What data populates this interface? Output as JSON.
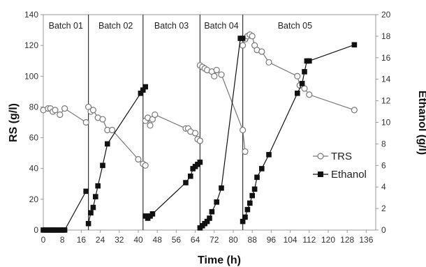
{
  "chart_data": {
    "type": "scatter",
    "title": "",
    "xlabel": "Time (h)",
    "ylabel": "RS (g/l)",
    "y2label": "Ethanol (g/l)",
    "xlim": [
      0,
      140
    ],
    "ylim": [
      0,
      140
    ],
    "y2lim": [
      0,
      20
    ],
    "xticks": [
      0,
      8,
      16,
      24,
      32,
      40,
      48,
      56,
      64,
      72,
      80,
      88,
      96,
      104,
      112,
      120,
      128,
      136
    ],
    "yticks": [
      0,
      20,
      40,
      60,
      80,
      100,
      120,
      140
    ],
    "y2ticks": [
      0,
      2,
      4,
      6,
      8,
      10,
      12,
      14,
      16,
      18,
      20
    ],
    "grid": false,
    "legend_position": "right",
    "batch_boundaries": [
      19,
      42,
      66,
      84
    ],
    "batch_labels": [
      {
        "text": "Batch 01",
        "x": 9.5
      },
      {
        "text": "Batch 02",
        "x": 30.5
      },
      {
        "text": "Batch 03",
        "x": 54
      },
      {
        "text": "Batch 04",
        "x": 75
      },
      {
        "text": "Batch 05",
        "x": 106
      }
    ],
    "series": [
      {
        "name": "TRS",
        "axis": "left",
        "marker": "open-circle",
        "segments": [
          [
            [
              0,
              78
            ],
            [
              2,
              79
            ],
            [
              3,
              79
            ],
            [
              4,
              77
            ],
            [
              5,
              78
            ],
            [
              7,
              75
            ],
            [
              9,
              79
            ],
            [
              18,
              70
            ]
          ],
          [
            [
              19,
              80
            ],
            [
              20,
              77
            ],
            [
              21,
              78
            ],
            [
              23,
              73
            ],
            [
              25,
              72
            ],
            [
              27,
              65
            ],
            [
              29,
              65
            ],
            [
              40,
              46
            ],
            [
              42,
              43
            ],
            [
              43,
              42
            ]
          ],
          [
            [
              43,
              71
            ],
            [
              44,
              73
            ],
            [
              45,
              68
            ],
            [
              46,
              72
            ],
            [
              47,
              75
            ],
            [
              60,
              66
            ],
            [
              61,
              66
            ],
            [
              62,
              64
            ],
            [
              64,
              63
            ],
            [
              65,
              59
            ],
            [
              66,
              58
            ]
          ],
          [
            [
              66,
              107
            ],
            [
              67,
              106
            ],
            [
              68,
              105
            ],
            [
              69,
              104
            ],
            [
              71,
              103
            ],
            [
              72,
              100
            ],
            [
              73,
              104
            ],
            [
              75,
              101
            ],
            [
              84,
              65
            ],
            [
              85,
              51
            ]
          ],
          [
            [
              84,
              120
            ],
            [
              85,
              124
            ],
            [
              86,
              126
            ],
            [
              87,
              127
            ],
            [
              88,
              126
            ],
            [
              89,
              120
            ],
            [
              90,
              117
            ],
            [
              92,
              116
            ],
            [
              95,
              109
            ],
            [
              107,
              100
            ],
            [
              108,
              94
            ],
            [
              110,
              92
            ],
            [
              112,
              88
            ],
            [
              131,
              78
            ]
          ]
        ]
      },
      {
        "name": "Ethanol",
        "axis": "right",
        "marker": "filled-square",
        "segments": [
          [
            [
              0,
              0
            ],
            [
              1,
              0
            ],
            [
              2,
              0
            ],
            [
              3,
              0
            ],
            [
              4,
              0
            ],
            [
              5,
              0
            ],
            [
              6,
              0
            ],
            [
              7,
              0
            ],
            [
              8,
              0
            ],
            [
              9,
              0
            ],
            [
              18,
              3.6
            ]
          ],
          [
            [
              19,
              0.6
            ],
            [
              20,
              1.6
            ],
            [
              21,
              2.1
            ],
            [
              22,
              3.1
            ],
            [
              23,
              4.1
            ],
            [
              25,
              6.0
            ],
            [
              27,
              8.0
            ],
            [
              41,
              12.7
            ],
            [
              42,
              13.0
            ],
            [
              43,
              13.3
            ]
          ],
          [
            [
              43,
              1.3
            ],
            [
              44,
              1.1
            ],
            [
              45,
              1.3
            ],
            [
              46,
              1.5
            ],
            [
              60,
              4.4
            ],
            [
              62,
              5.0
            ],
            [
              63,
              5.7
            ],
            [
              64,
              5.9
            ],
            [
              65,
              6.1
            ],
            [
              66,
              6.3
            ]
          ],
          [
            [
              66,
              0.2
            ],
            [
              67,
              0.4
            ],
            [
              68,
              0.6
            ],
            [
              69,
              0.8
            ],
            [
              70,
              1.1
            ],
            [
              71,
              1.7
            ],
            [
              73,
              2.6
            ],
            [
              75,
              3.9
            ],
            [
              83,
              17.8
            ],
            [
              84,
              17.8
            ]
          ],
          [
            [
              84,
              0.8
            ],
            [
              85,
              1.2
            ],
            [
              86,
              1.9
            ],
            [
              87,
              2.5
            ],
            [
              88,
              3.2
            ],
            [
              89,
              3.8
            ],
            [
              90,
              4.9
            ],
            [
              92,
              5.7
            ],
            [
              95,
              7.0
            ],
            [
              107,
              12.7
            ],
            [
              109,
              13.6
            ],
            [
              110,
              14.7
            ],
            [
              111,
              15.7
            ],
            [
              112,
              15.7
            ],
            [
              131,
              17.2
            ]
          ]
        ]
      }
    ]
  }
}
